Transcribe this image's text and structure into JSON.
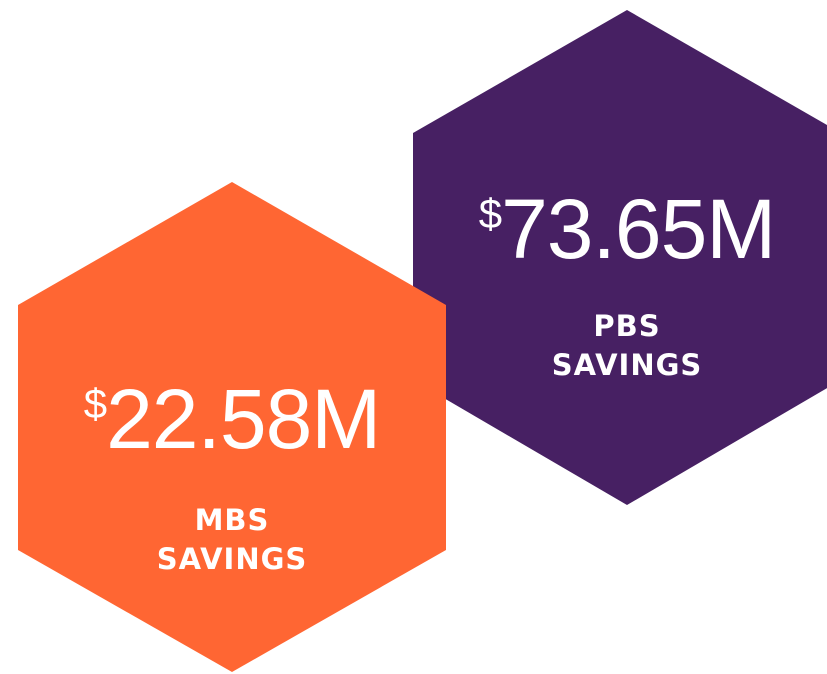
{
  "hexagons": [
    {
      "currency": "$",
      "amount": "73.65M",
      "label": [
        "PBS",
        "SAVINGS"
      ]
    },
    {
      "currency": "$",
      "amount": "22.58M",
      "label": [
        "MBS",
        "SAVINGS"
      ]
    }
  ]
}
